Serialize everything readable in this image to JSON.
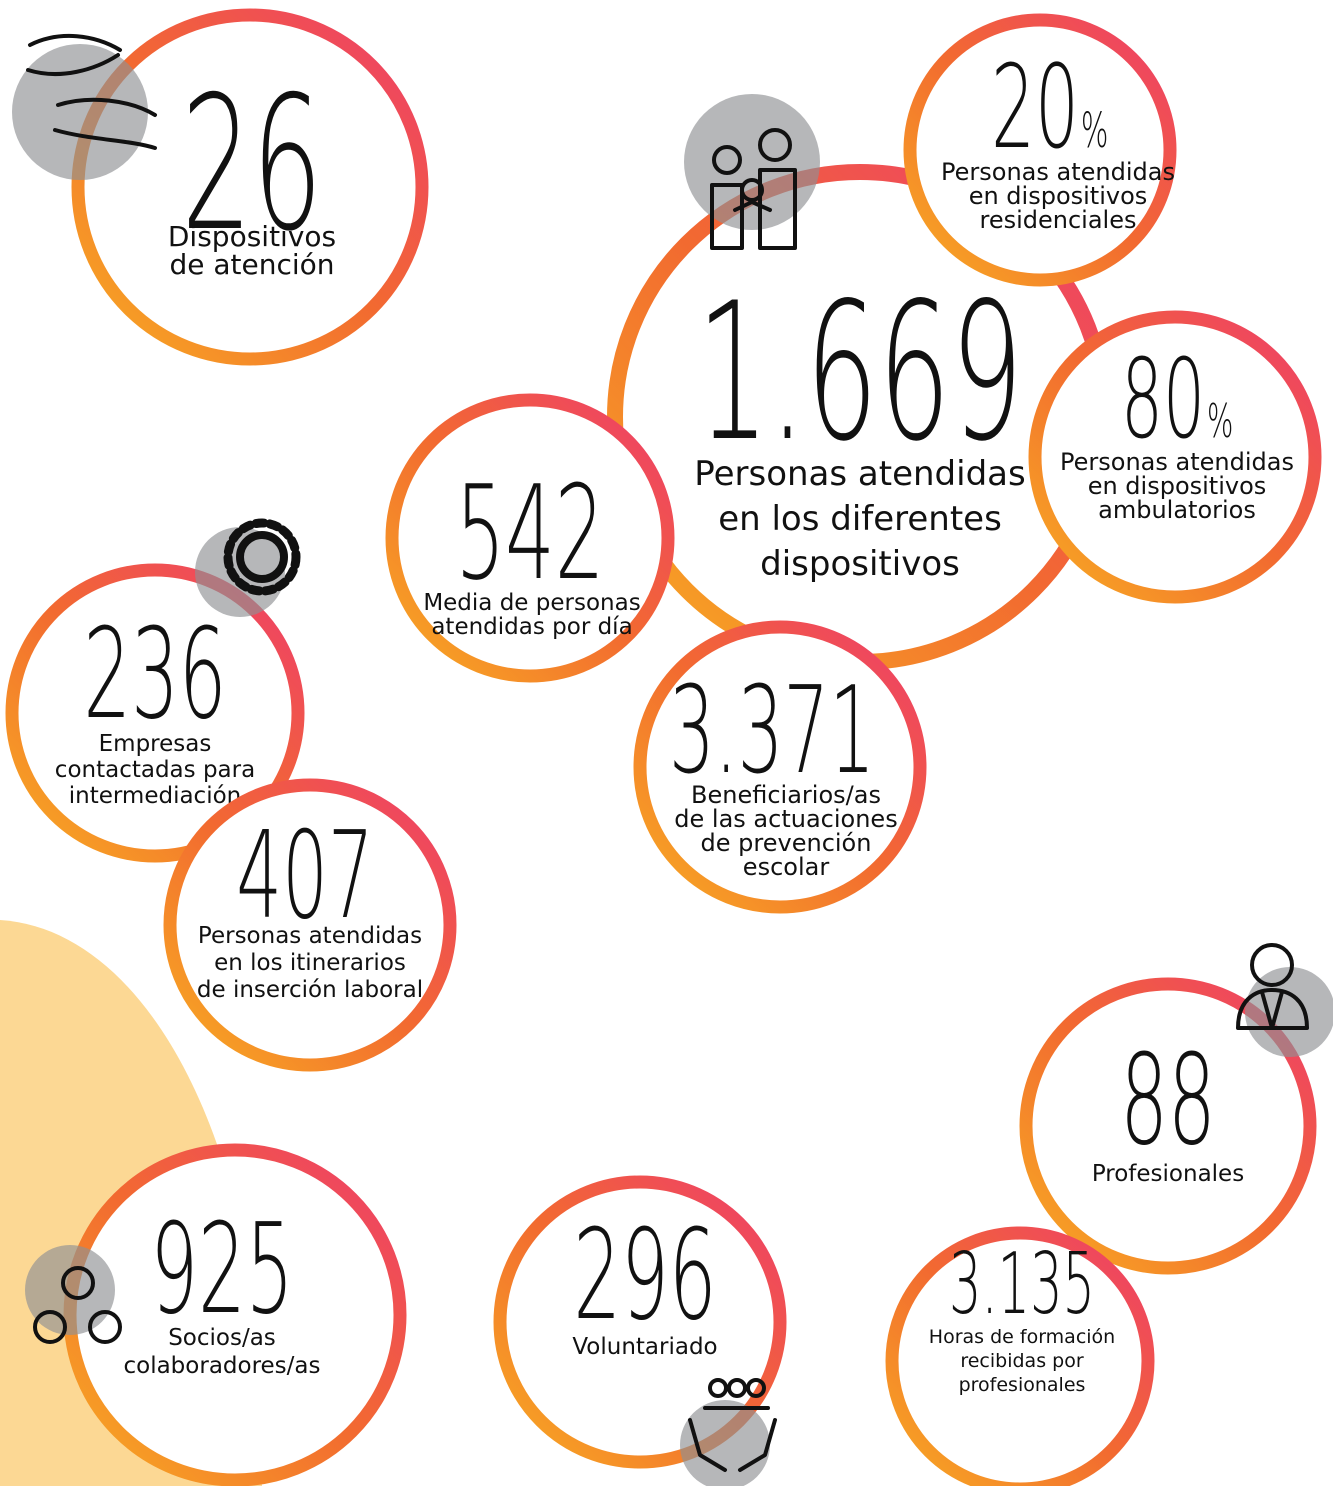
{
  "stats": [
    {
      "number": "26",
      "label": [
        "Dispositivos",
        "de atención"
      ]
    },
    {
      "number": "1.669",
      "label": [
        "Personas atendidas",
        "en los diferentes",
        "dispositivos"
      ]
    },
    {
      "number": "542",
      "label": [
        "Media de personas",
        "atendidas por día"
      ]
    },
    {
      "number": "3.371",
      "label": [
        "Beneficiarios/as",
        "de las actuaciones",
        "de prevención",
        "escolar"
      ]
    },
    {
      "number": "20",
      "unit": "%",
      "label": [
        "Personas atendidas",
        "en dispositivos",
        "residenciales"
      ]
    },
    {
      "number": "80",
      "unit": "%",
      "label": [
        "Personas atendidas",
        "en dispositivos",
        "ambulatorios"
      ]
    },
    {
      "number": "236",
      "label": [
        "Empresas",
        "contactadas para",
        "intermediación"
      ]
    },
    {
      "number": "407",
      "label": [
        "Personas atendidas",
        "en los itinerarios",
        "de inserción laboral"
      ]
    },
    {
      "number": "88",
      "label": [
        "Profesionales"
      ]
    },
    {
      "number": "3.135",
      "label": [
        "Horas de formación",
        "recibidas por",
        "profesionales"
      ]
    },
    {
      "number": "925",
      "label": [
        "Socios/as",
        "colaboradores/as"
      ]
    },
    {
      "number": "296",
      "label": [
        "Voluntariado"
      ]
    }
  ]
}
